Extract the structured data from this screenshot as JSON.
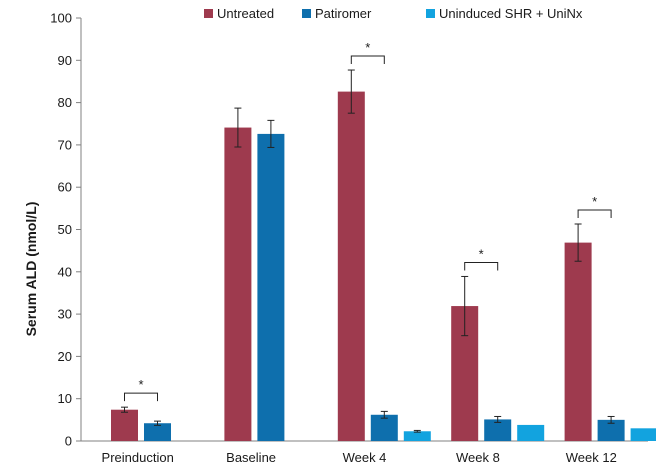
{
  "chart_data": {
    "type": "bar",
    "title": "",
    "xlabel": "",
    "ylabel": "Serum ALD (nmol/L)",
    "ylim": [
      0,
      100
    ],
    "yticks": [
      0,
      10,
      20,
      30,
      40,
      50,
      60,
      70,
      80,
      90,
      100
    ],
    "grid": false,
    "legend_position": "top",
    "categories": [
      "Preinduction",
      "Baseline",
      "Week 4",
      "Week 8",
      "Week 12"
    ],
    "series": [
      {
        "name": "Untreated",
        "color": "#9e3a4e",
        "values": [
          7.4,
          74.1,
          82.6,
          31.9,
          46.9
        ],
        "errors": [
          0.6,
          4.6,
          5.1,
          7.0,
          4.4
        ]
      },
      {
        "name": "Patiromer",
        "color": "#0e6fad",
        "values": [
          4.2,
          72.6,
          6.2,
          5.1,
          5.0
        ],
        "errors": [
          0.5,
          3.2,
          0.8,
          0.7,
          0.8
        ]
      },
      {
        "name": "Uninduced SHR + UniNx",
        "color": "#12a3df",
        "values": [
          null,
          null,
          2.3,
          3.8,
          3.0
        ],
        "errors": [
          null,
          null,
          0.2,
          null,
          null
        ]
      }
    ],
    "significance": [
      {
        "category": "Preinduction",
        "label": "*"
      },
      {
        "category": "Week 4",
        "label": "*"
      },
      {
        "category": "Week 8",
        "label": "*"
      },
      {
        "category": "Week 12",
        "label": "*"
      }
    ]
  }
}
